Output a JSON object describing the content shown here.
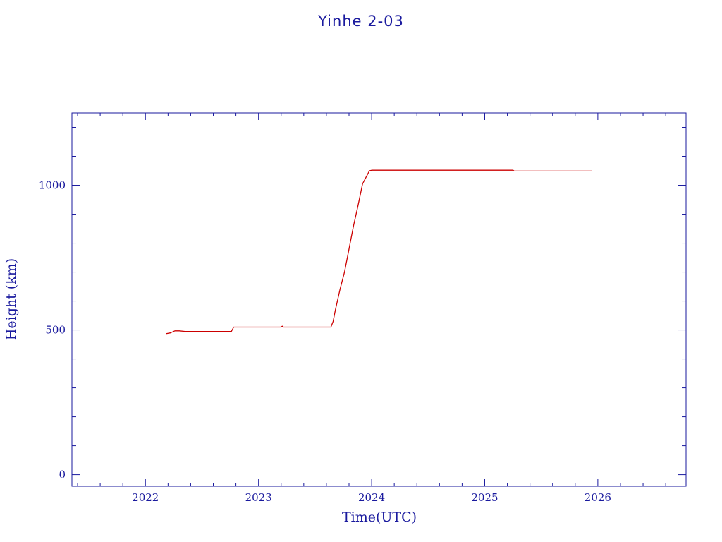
{
  "chart_data": {
    "type": "line",
    "title": "Yinhe 2-03",
    "xlabel": "Time(UTC)",
    "ylabel": "Height (km)",
    "xlim": [
      2021.35,
      2026.78
    ],
    "ylim": [
      -40,
      1250
    ],
    "x_ticks": [
      2022,
      2023,
      2024,
      2025,
      2026
    ],
    "x_tick_labels": [
      "2022",
      "2023",
      "2024",
      "2025",
      "2026"
    ],
    "y_ticks": [
      0,
      500,
      1000
    ],
    "y_tick_labels": [
      "0",
      "500",
      "1000"
    ],
    "grid": false,
    "colors": {
      "axis": "#1a1a9e",
      "line": "#cc0000"
    },
    "series": [
      {
        "x": [
          2022.18,
          2022.22,
          2022.26,
          2022.3,
          2022.35,
          2022.5,
          2022.7,
          2022.76,
          2022.78,
          2023.0,
          2023.2,
          2023.21,
          2023.22,
          2023.5,
          2023.64,
          2023.66,
          2023.68,
          2023.72,
          2023.76,
          2023.8,
          2023.84,
          2023.88,
          2023.92,
          2023.96,
          2023.98,
          2024.0,
          2024.5,
          2025.0,
          2025.25,
          2025.26,
          2025.5,
          2025.95
        ],
        "y": [
          487,
          490,
          497,
          497,
          495,
          495,
          495,
          495,
          510,
          510,
          510,
          513,
          510,
          510,
          510,
          530,
          570,
          640,
          700,
          780,
          860,
          930,
          1005,
          1035,
          1050,
          1052,
          1052,
          1052,
          1052,
          1049,
          1049,
          1049
        ]
      }
    ]
  }
}
